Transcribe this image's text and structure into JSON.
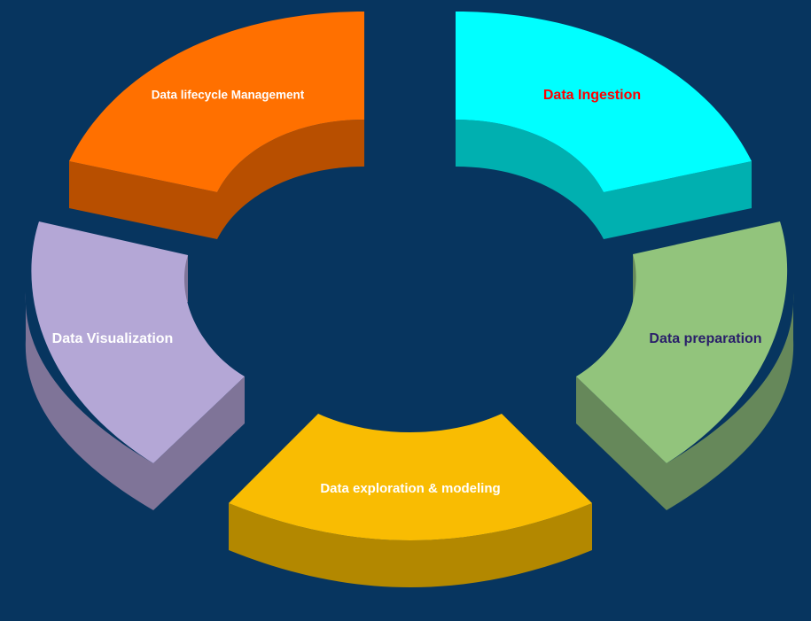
{
  "background_color": "#07355f",
  "segments": [
    {
      "id": "ingestion",
      "label": "Data Ingestion",
      "label_color": "#ff0000",
      "top_color": "#00ffff",
      "side_color": "#00b0b0"
    },
    {
      "id": "preparation",
      "label": "Data preparation",
      "label_color": "#2a1f6a",
      "top_color": "#92c47c",
      "side_color": "#66885a"
    },
    {
      "id": "exploration",
      "label": "Data exploration & modeling",
      "label_color": "#ffffff",
      "top_color": "#f9bc02",
      "side_color": "#b38800"
    },
    {
      "id": "visualization",
      "label": "Data Visualization",
      "label_color": "#ffffff",
      "top_color": "#b4a7d6",
      "side_color": "#7f7498"
    },
    {
      "id": "lifecycle",
      "label": "Data lifecycle Management",
      "label_color": "#ffffff",
      "top_color": "#ff7000",
      "side_color": "#b84f00"
    }
  ]
}
